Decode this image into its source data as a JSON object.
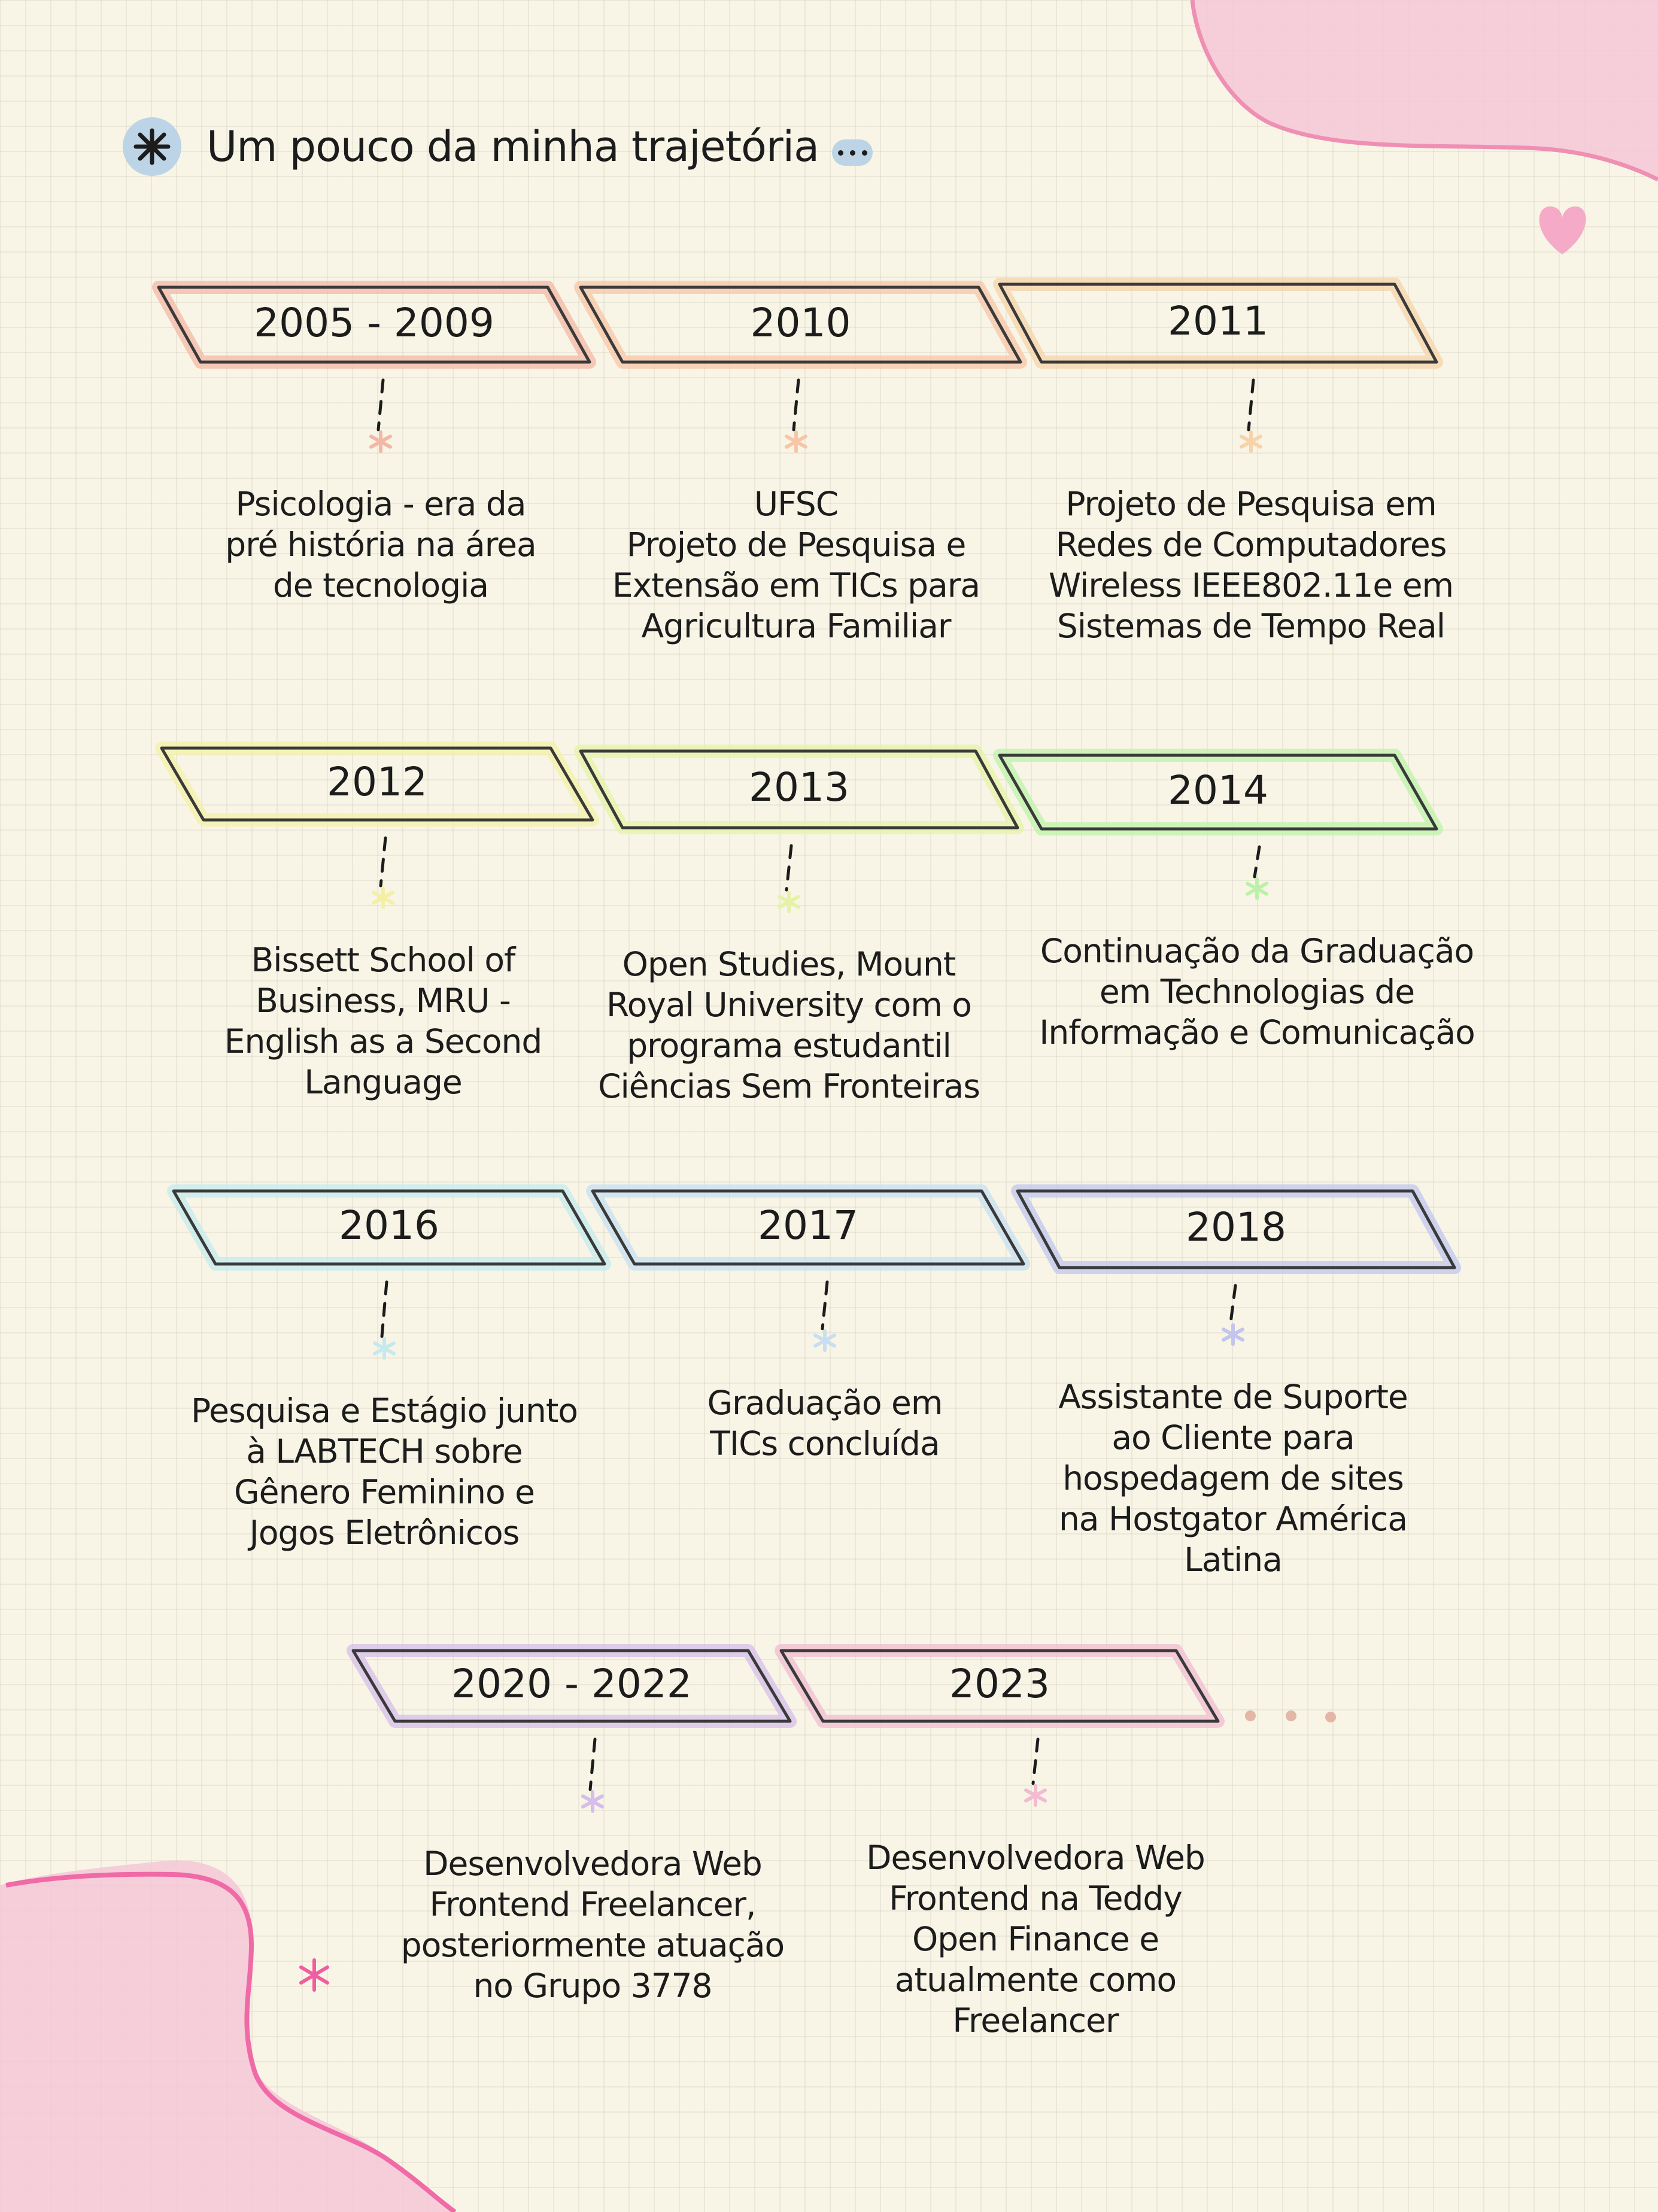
{
  "heading": {
    "title": "Um pouco da minha trajetória",
    "icon": "asterisk-icon",
    "trailing_icon": "ellipsis-icon"
  },
  "colors": {
    "background": "#f8f5e6",
    "accent_pink": "#f2a9c9",
    "accent_blue": "#bcd4e6"
  },
  "timeline": [
    {
      "year": "2005 - 2009",
      "color": "#f4b7a5",
      "lines": [
        "Psicologia - era da",
        "pré história na área",
        "de tecnologia"
      ]
    },
    {
      "year": "2010",
      "color": "#f7c6a6",
      "lines": [
        "UFSC",
        "Projeto de Pesquisa e",
        "Extensão em TICs para",
        "Agricultura Familiar"
      ]
    },
    {
      "year": "2011",
      "color": "#f6d3a8",
      "lines": [
        "Projeto de Pesquisa em",
        "Redes de Computadores",
        "Wireless IEEE802.11e em",
        "Sistemas de Tempo Real"
      ]
    },
    {
      "year": "2012",
      "color": "#f3f0a6",
      "lines": [
        "Bissett School of",
        "Business, MRU -",
        "English as a Second",
        "Language"
      ]
    },
    {
      "year": "2013",
      "color": "#e6f3a6",
      "lines": [
        "Open Studies, Mount",
        "Royal University com o",
        "programa estudantil",
        "Ciências Sem Fronteiras"
      ]
    },
    {
      "year": "2014",
      "color": "#bdf1a8",
      "lines": [
        "Continuação da Graduação",
        "em Technologias de",
        "Informação e Comunicação"
      ]
    },
    {
      "year": "2016",
      "color": "#c4e9ee",
      "lines": [
        "Pesquisa e Estágio junto",
        "à LABTECH sobre",
        "Gênero Feminino e",
        "Jogos Eletrônicos"
      ]
    },
    {
      "year": "2017",
      "color": "#c7dff1",
      "lines": [
        "Graduação em",
        "TICs concluída"
      ]
    },
    {
      "year": "2018",
      "color": "#c2c5ee",
      "lines": [
        "Assistante de Suporte",
        "ao Cliente para",
        "hospedagem de sites",
        "na Hostgator América",
        "Latina"
      ]
    },
    {
      "year": "2020 - 2022",
      "color": "#d6bdea",
      "lines": [
        "Desenvolvedora Web",
        "Frontend Freelancer,",
        "posteriormente atuação",
        "no Grupo 3778"
      ]
    },
    {
      "year": "2023",
      "color": "#f1bcd0",
      "lines": [
        "Desenvolvedora Web",
        "Frontend na Teddy",
        "Open Finance e",
        "atualmente como",
        "Freelancer"
      ]
    }
  ]
}
